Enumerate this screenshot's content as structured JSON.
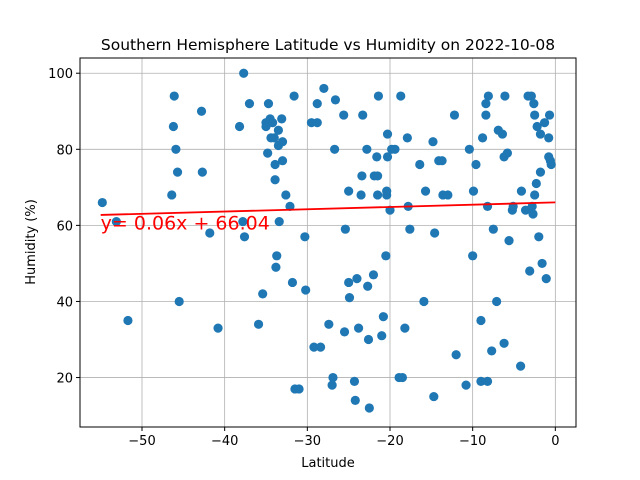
{
  "chart_data": {
    "type": "scatter",
    "title": "Southern Hemisphere Latitude vs Humidity on 2022-10-08",
    "xlabel": "Latitude",
    "ylabel": "Humidity (%)",
    "xlim": [
      -57.5,
      2.5
    ],
    "ylim": [
      7,
      104
    ],
    "xticks": [
      -50,
      -40,
      -30,
      -20,
      -10,
      0
    ],
    "yticks": [
      20,
      40,
      60,
      80,
      100
    ],
    "grid": true,
    "point_color": "#1f77b4",
    "line_color": "#ff0000",
    "annotation": {
      "text": "y= 0.06x + 66.04",
      "x": -55,
      "y": 60.5
    },
    "regression": {
      "slope": 0.06,
      "intercept": 66.04,
      "x_range": [
        -55,
        0
      ]
    },
    "points": [
      [
        -54.8,
        66
      ],
      [
        -53.1,
        61
      ],
      [
        -51.7,
        35
      ],
      [
        -46.4,
        68
      ],
      [
        -46.2,
        86
      ],
      [
        -46.1,
        94
      ],
      [
        -45.9,
        80
      ],
      [
        -45.7,
        74
      ],
      [
        -45.5,
        40
      ],
      [
        -42.8,
        90
      ],
      [
        -42.7,
        74
      ],
      [
        -41.8,
        58
      ],
      [
        -40.8,
        33
      ],
      [
        -38.2,
        86
      ],
      [
        -37.8,
        61
      ],
      [
        -37.7,
        100
      ],
      [
        -37.6,
        57
      ],
      [
        -37.0,
        92
      ],
      [
        -35.9,
        34
      ],
      [
        -35.4,
        42
      ],
      [
        -35.0,
        87
      ],
      [
        -35.0,
        86
      ],
      [
        -34.8,
        79
      ],
      [
        -34.7,
        92
      ],
      [
        -34.5,
        88
      ],
      [
        -34.4,
        83
      ],
      [
        -34.2,
        87
      ],
      [
        -34.0,
        83
      ],
      [
        -33.9,
        72
      ],
      [
        -33.9,
        76
      ],
      [
        -33.8,
        49
      ],
      [
        -33.7,
        52
      ],
      [
        -33.5,
        85
      ],
      [
        -33.5,
        81
      ],
      [
        -33.4,
        61
      ],
      [
        -33.1,
        88
      ],
      [
        -33.0,
        77
      ],
      [
        -33.0,
        82
      ],
      [
        -32.6,
        68
      ],
      [
        -32.1,
        65
      ],
      [
        -31.8,
        45
      ],
      [
        -31.6,
        94
      ],
      [
        -31.5,
        17
      ],
      [
        -31.0,
        17
      ],
      [
        -30.3,
        57
      ],
      [
        -30.2,
        43
      ],
      [
        -29.5,
        87
      ],
      [
        -29.2,
        28
      ],
      [
        -28.8,
        87
      ],
      [
        -28.8,
        92
      ],
      [
        -28.4,
        28
      ],
      [
        -28.0,
        96
      ],
      [
        -27.4,
        34
      ],
      [
        -27.0,
        18
      ],
      [
        -26.9,
        20
      ],
      [
        -26.7,
        80
      ],
      [
        -26.6,
        93
      ],
      [
        -25.6,
        89
      ],
      [
        -25.5,
        32
      ],
      [
        -25.4,
        59
      ],
      [
        -25.0,
        45
      ],
      [
        -25.0,
        69
      ],
      [
        -24.9,
        41
      ],
      [
        -24.3,
        19
      ],
      [
        -24.2,
        14
      ],
      [
        -24.0,
        46
      ],
      [
        -23.8,
        33
      ],
      [
        -23.5,
        68
      ],
      [
        -23.4,
        73
      ],
      [
        -23.3,
        89
      ],
      [
        -22.8,
        80
      ],
      [
        -22.7,
        44
      ],
      [
        -22.6,
        30
      ],
      [
        -22.5,
        12
      ],
      [
        -22.0,
        47
      ],
      [
        -21.9,
        73
      ],
      [
        -21.6,
        78
      ],
      [
        -21.5,
        68
      ],
      [
        -21.5,
        73
      ],
      [
        -21.4,
        94
      ],
      [
        -21.0,
        31
      ],
      [
        -20.8,
        36
      ],
      [
        -20.5,
        52
      ],
      [
        -20.4,
        68
      ],
      [
        -20.4,
        69
      ],
      [
        -20.3,
        78
      ],
      [
        -20.3,
        84
      ],
      [
        -20.0,
        64
      ],
      [
        -19.8,
        80
      ],
      [
        -19.4,
        80
      ],
      [
        -18.9,
        20
      ],
      [
        -18.7,
        94
      ],
      [
        -18.5,
        20
      ],
      [
        -18.2,
        33
      ],
      [
        -17.9,
        83
      ],
      [
        -17.8,
        65
      ],
      [
        -17.6,
        59
      ],
      [
        -16.4,
        76
      ],
      [
        -15.9,
        40
      ],
      [
        -15.7,
        69
      ],
      [
        -14.8,
        82
      ],
      [
        -14.7,
        15
      ],
      [
        -14.6,
        58
      ],
      [
        -14.1,
        77
      ],
      [
        -13.7,
        77
      ],
      [
        -13.6,
        68
      ],
      [
        -13.0,
        68
      ],
      [
        -12.2,
        89
      ],
      [
        -12.0,
        26
      ],
      [
        -10.8,
        18
      ],
      [
        -10.4,
        80
      ],
      [
        -10.0,
        52
      ],
      [
        -9.9,
        69
      ],
      [
        -9.6,
        76
      ],
      [
        -9.0,
        35
      ],
      [
        -9.0,
        19
      ],
      [
        -8.8,
        83
      ],
      [
        -8.4,
        89
      ],
      [
        -8.4,
        92
      ],
      [
        -8.2,
        65
      ],
      [
        -8.2,
        19
      ],
      [
        -8.1,
        94
      ],
      [
        -7.7,
        27
      ],
      [
        -7.5,
        59
      ],
      [
        -7.1,
        40
      ],
      [
        -6.9,
        85
      ],
      [
        -6.4,
        84
      ],
      [
        -6.2,
        29
      ],
      [
        -6.2,
        78
      ],
      [
        -6.1,
        94
      ],
      [
        -5.8,
        79
      ],
      [
        -5.6,
        56
      ],
      [
        -5.2,
        64
      ],
      [
        -5.1,
        65
      ],
      [
        -4.2,
        23
      ],
      [
        -4.1,
        69
      ],
      [
        -3.6,
        64
      ],
      [
        -3.3,
        94
      ],
      [
        -3.1,
        48
      ],
      [
        -2.9,
        94
      ],
      [
        -2.8,
        65
      ],
      [
        -2.7,
        63
      ],
      [
        -2.6,
        92
      ],
      [
        -2.5,
        89
      ],
      [
        -2.5,
        68
      ],
      [
        -2.3,
        71
      ],
      [
        -2.2,
        86
      ],
      [
        -2.0,
        57
      ],
      [
        -1.8,
        84
      ],
      [
        -1.8,
        74
      ],
      [
        -1.6,
        50
      ],
      [
        -1.3,
        87
      ],
      [
        -1.1,
        46
      ],
      [
        -0.8,
        83
      ],
      [
        -0.8,
        78
      ],
      [
        -0.7,
        89
      ],
      [
        -0.6,
        77
      ],
      [
        -0.5,
        76
      ]
    ]
  }
}
